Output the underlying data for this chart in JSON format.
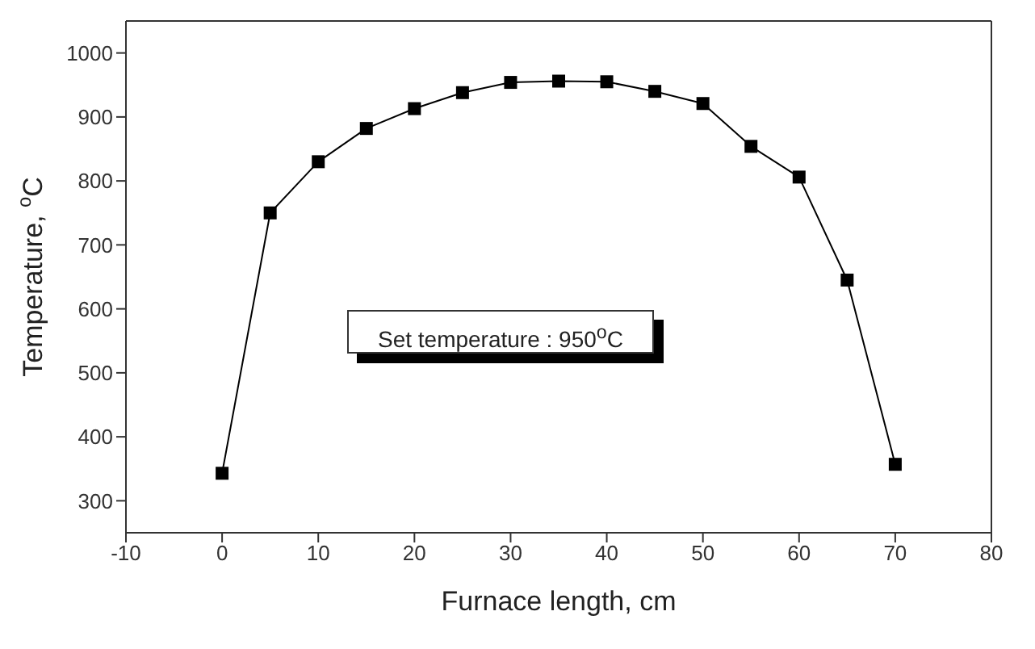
{
  "chart_data": {
    "type": "line",
    "xlabel": "Furnace length, cm",
    "ylabel": "Temperature, $^{o}$C",
    "x": [
      0,
      5,
      10,
      15,
      20,
      25,
      30,
      35,
      40,
      45,
      50,
      55,
      60,
      65,
      70
    ],
    "series": [
      {
        "color": "#000000",
        "values": [
          343,
          750,
          830,
          882,
          913,
          938,
          954,
          956,
          955,
          940,
          921,
          854,
          806,
          645,
          357
        ]
      }
    ],
    "xlim": [
      -10,
      80
    ],
    "xticks": [
      -10,
      0,
      10,
      20,
      30,
      40,
      50,
      60,
      70,
      80
    ],
    "ylim": [
      250,
      1050
    ],
    "yticks": [
      300,
      400,
      500,
      600,
      700,
      800,
      900,
      1000
    ],
    "grid": false,
    "legend": false,
    "marker": "square",
    "line_style": "solid",
    "annotations": [
      "Set temperature : 950$^{o}$C"
    ]
  }
}
